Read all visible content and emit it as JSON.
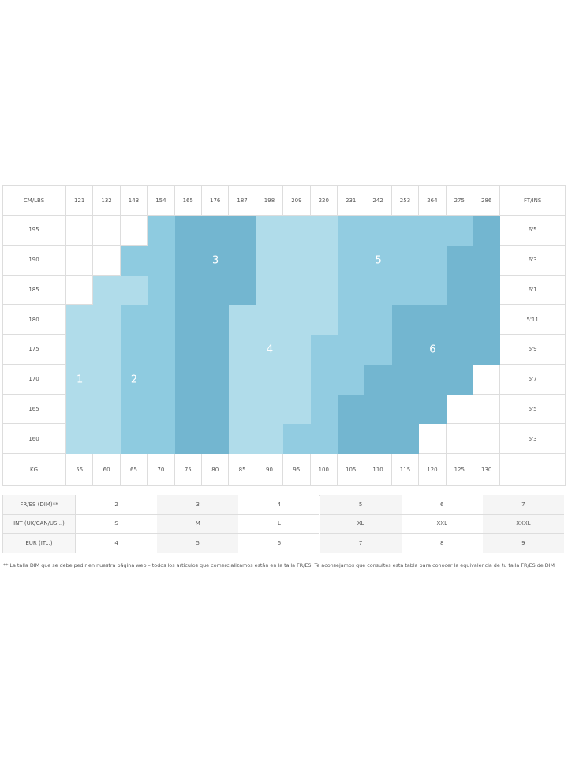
{
  "chart": {
    "corner_left": "CM/LBS",
    "corner_right": "FT/INS",
    "bottom_left": "KG",
    "lbs": [
      "121",
      "132",
      "143",
      "154",
      "165",
      "176",
      "187",
      "198",
      "209",
      "220",
      "231",
      "242",
      "253",
      "264",
      "275",
      "286"
    ],
    "kg": [
      "55",
      "60",
      "65",
      "70",
      "75",
      "80",
      "85",
      "90",
      "95",
      "100",
      "105",
      "110",
      "115",
      "120",
      "125",
      "130"
    ],
    "cm": [
      "195",
      "190",
      "185",
      "180",
      "175",
      "170",
      "165",
      "160"
    ],
    "ft": [
      "6'5",
      "6'3",
      "6'1",
      "5'11",
      "5'9",
      "5'7",
      "5'5",
      "5'3"
    ],
    "zone_colors": {
      "1": "#b0dcea",
      "2": "#8ecbe0",
      "3": "#73b6d0",
      "4": "#b0dcea",
      "5": "#92cce1",
      "6": "#73b6d0"
    },
    "zones": [
      [
        0,
        0,
        0,
        2,
        3,
        3,
        3,
        4,
        4,
        4,
        5,
        5,
        5,
        5,
        5,
        6
      ],
      [
        0,
        0,
        2,
        2,
        3,
        3,
        3,
        4,
        4,
        4,
        5,
        5,
        5,
        5,
        6,
        6
      ],
      [
        0,
        1,
        1,
        2,
        3,
        3,
        3,
        4,
        4,
        4,
        5,
        5,
        5,
        5,
        6,
        6
      ],
      [
        1,
        1,
        2,
        2,
        3,
        3,
        4,
        4,
        4,
        4,
        5,
        5,
        6,
        6,
        6,
        6
      ],
      [
        1,
        1,
        2,
        2,
        3,
        3,
        4,
        4,
        4,
        5,
        5,
        5,
        6,
        6,
        6,
        6
      ],
      [
        1,
        1,
        2,
        2,
        3,
        3,
        4,
        4,
        4,
        5,
        5,
        6,
        6,
        6,
        6,
        0
      ],
      [
        1,
        1,
        2,
        2,
        3,
        3,
        4,
        4,
        4,
        5,
        6,
        6,
        6,
        6,
        0,
        0
      ],
      [
        1,
        1,
        2,
        2,
        3,
        3,
        4,
        4,
        5,
        5,
        6,
        6,
        6,
        0,
        0,
        0
      ]
    ],
    "zone_labels": [
      {
        "text": "1",
        "row": 5,
        "col": 0
      },
      {
        "text": "2",
        "row": 5,
        "col": 2
      },
      {
        "text": "3",
        "row": 1,
        "col": 5
      },
      {
        "text": "4",
        "row": 4,
        "col": 7
      },
      {
        "text": "5",
        "row": 1,
        "col": 11
      },
      {
        "text": "6",
        "row": 4,
        "col": 13
      }
    ]
  },
  "equivalence": {
    "rows": [
      {
        "label": "FR/ES (DIM)**",
        "values": [
          "2",
          "3",
          "4",
          "5",
          "6",
          "7"
        ]
      },
      {
        "label": "INT (UK/CAN/US...)",
        "values": [
          "S",
          "M",
          "L",
          "XL",
          "XXL",
          "XXXL"
        ]
      },
      {
        "label": "EUR (IT...)",
        "values": [
          "4",
          "5",
          "6",
          "7",
          "8",
          "9"
        ]
      }
    ]
  },
  "footnote": "** La talla DIM que se debe pedir en nuestra página web – todos los artículos que comercializamos están en la talla FR/ES. Te aconsejamos que consultes esta tabla para conocer la equivalencia de tu talla FR/ES de DIM"
}
